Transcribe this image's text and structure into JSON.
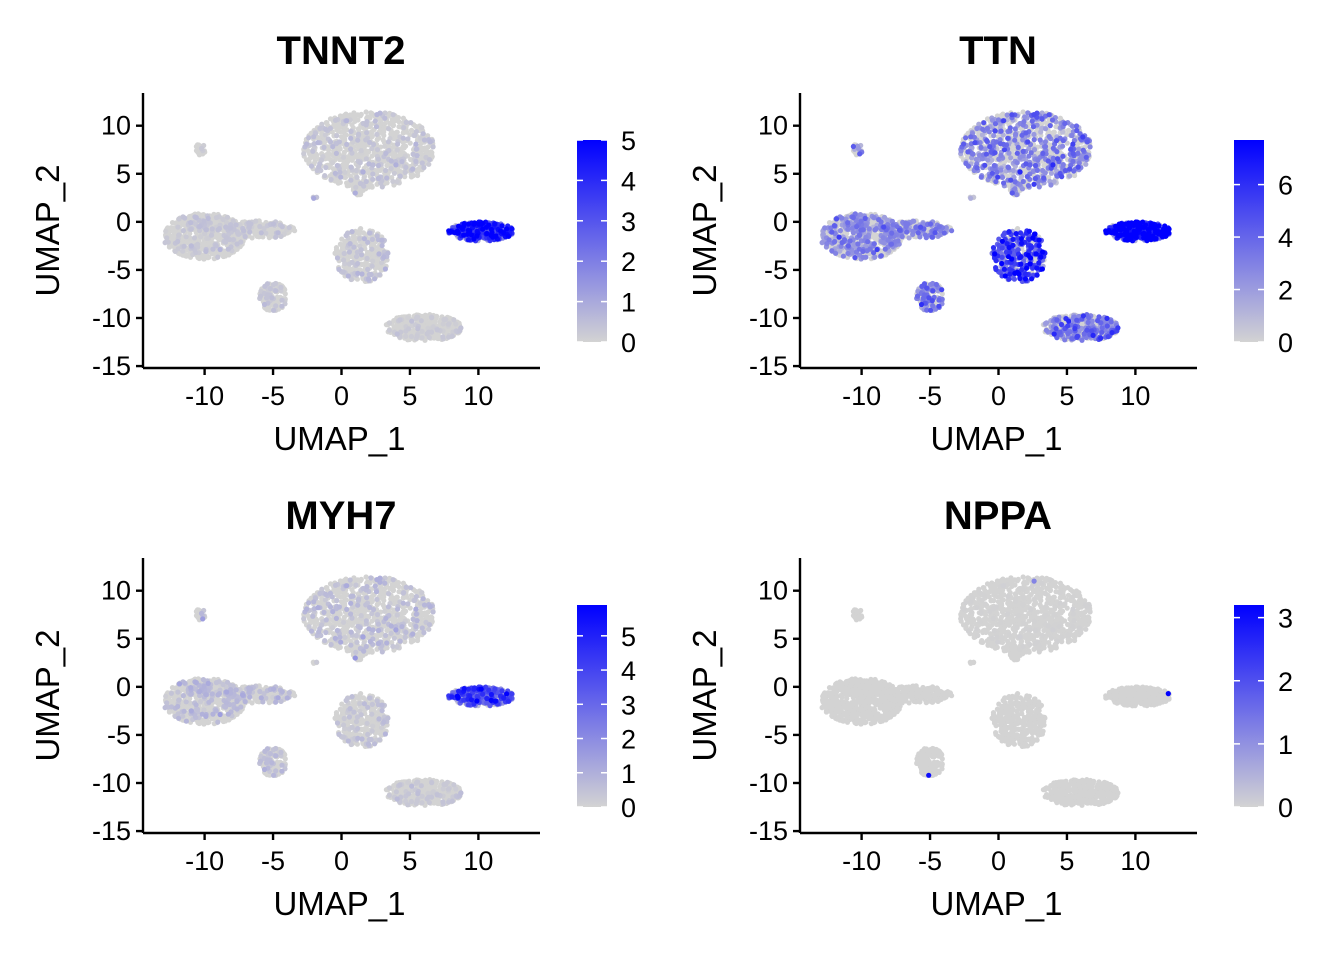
{
  "chart_data": [
    {
      "type": "scatter",
      "title": "TNNT2",
      "xlabel": "UMAP_1",
      "ylabel": "UMAP_2",
      "xlim": [
        -14.5,
        14.5
      ],
      "ylim": [
        -15.2,
        13.4
      ],
      "xticks": [
        -10,
        -5,
        0,
        5,
        10
      ],
      "yticks": [
        -15,
        -10,
        -5,
        0,
        5,
        10
      ],
      "color_scale": {
        "low": "#d3d3d3",
        "high": "#0000ff",
        "min": 0,
        "max": 5,
        "ticks": [
          0,
          1,
          2,
          3,
          4,
          5
        ]
      }
    },
    {
      "type": "scatter",
      "title": "TTN",
      "xlabel": "UMAP_1",
      "ylabel": "UMAP_2",
      "xlim": [
        -14.5,
        14.5
      ],
      "ylim": [
        -15.2,
        13.4
      ],
      "xticks": [
        -10,
        -5,
        0,
        5,
        10
      ],
      "yticks": [
        -15,
        -10,
        -5,
        0,
        5,
        10
      ],
      "color_scale": {
        "low": "#d3d3d3",
        "high": "#0000ff",
        "min": 0,
        "max": 7.7,
        "ticks": [
          0,
          2,
          4,
          6
        ]
      }
    },
    {
      "type": "scatter",
      "title": "MYH7",
      "xlabel": "UMAP_1",
      "ylabel": "UMAP_2",
      "xlim": [
        -14.5,
        14.5
      ],
      "ylim": [
        -15.2,
        13.4
      ],
      "xticks": [
        -10,
        -5,
        0,
        5,
        10
      ],
      "yticks": [
        -15,
        -10,
        -5,
        0,
        5,
        10
      ],
      "color_scale": {
        "low": "#d3d3d3",
        "high": "#0000ff",
        "min": 0,
        "max": 5.9,
        "ticks": [
          0,
          1,
          2,
          3,
          4,
          5
        ]
      }
    },
    {
      "type": "scatter",
      "title": "NPPA",
      "xlabel": "UMAP_1",
      "ylabel": "UMAP_2",
      "xlim": [
        -14.5,
        14.5
      ],
      "ylim": [
        -15.2,
        13.4
      ],
      "xticks": [
        -10,
        -5,
        0,
        5,
        10
      ],
      "yticks": [
        -15,
        -10,
        -5,
        0,
        5,
        10
      ],
      "color_scale": {
        "low": "#d3d3d3",
        "high": "#0000ff",
        "min": 0,
        "max": 3.2,
        "ticks": [
          0,
          1,
          2,
          3
        ]
      }
    }
  ],
  "clusters": [
    {
      "cx": 2.0,
      "cy": 7.5,
      "rx": 4.8,
      "ry": 4.0,
      "n": 900,
      "expr": [
        0.35,
        2.6,
        0.55,
        0.02
      ]
    },
    {
      "cx": -10.0,
      "cy": -1.5,
      "rx": 3.0,
      "ry": 2.4,
      "n": 600,
      "expr": [
        0.3,
        2.2,
        0.6,
        0.0
      ]
    },
    {
      "cx": -6.0,
      "cy": -0.8,
      "rx": 2.6,
      "ry": 0.9,
      "n": 260,
      "expr": [
        0.3,
        2.4,
        0.6,
        0.0
      ]
    },
    {
      "cx": 1.5,
      "cy": -3.5,
      "rx": 2.0,
      "ry": 2.8,
      "n": 320,
      "expr": [
        0.4,
        4.5,
        0.4,
        0.0
      ]
    },
    {
      "cx": 10.2,
      "cy": -1.0,
      "rx": 2.4,
      "ry": 1.0,
      "n": 320,
      "expr": [
        3.4,
        6.8,
        3.0,
        0.0
      ]
    },
    {
      "cx": 6.0,
      "cy": -11.0,
      "rx": 2.8,
      "ry": 1.4,
      "n": 380,
      "expr": [
        0.2,
        2.8,
        0.3,
        0.0
      ]
    },
    {
      "cx": -5.0,
      "cy": -7.8,
      "rx": 1.0,
      "ry": 1.5,
      "n": 110,
      "expr": [
        0.3,
        3.0,
        0.5,
        0.0
      ]
    },
    {
      "cx": -10.3,
      "cy": 7.5,
      "rx": 0.35,
      "ry": 0.7,
      "n": 20,
      "expr": [
        0.3,
        2.5,
        0.9,
        0.0
      ]
    },
    {
      "cx": 1.3,
      "cy": 3.5,
      "rx": 0.5,
      "ry": 0.9,
      "n": 35,
      "expr": [
        0.4,
        2.0,
        0.8,
        0.0
      ]
    },
    {
      "cx": -2.0,
      "cy": 2.5,
      "rx": 0.2,
      "ry": 0.2,
      "n": 4,
      "expr": [
        1.5,
        2.0,
        1.0,
        0.0
      ]
    }
  ],
  "colors": {
    "low": "#d3d3d3",
    "high": "#0000ff",
    "axis": "#000000"
  }
}
